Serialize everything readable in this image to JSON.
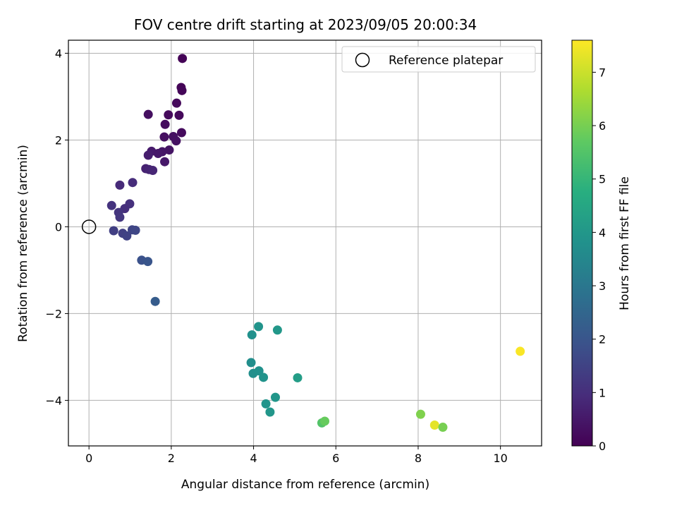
{
  "chart_data": {
    "type": "scatter",
    "title": "FOV centre drift starting at 2023/09/05 20:00:34",
    "xlabel": "Angular distance from reference (arcmin)",
    "ylabel": "Rotation from reference (arcmin)",
    "xlim": [
      -0.5,
      11
    ],
    "ylim": [
      -5.05,
      4.3
    ],
    "xticks": [
      0,
      2,
      4,
      6,
      8,
      10
    ],
    "yticks": [
      -4,
      -2,
      0,
      2,
      4
    ],
    "grid": true,
    "legend": {
      "location": "top-right",
      "entries": [
        {
          "label": "Reference platepar",
          "marker": "open-circle"
        }
      ]
    },
    "reference_point": {
      "x": 0,
      "y": 0
    },
    "colorbar": {
      "label": "Hours from first FF file",
      "colormap": "viridis",
      "range": [
        0,
        7.6
      ],
      "ticks": [
        0,
        1,
        2,
        3,
        4,
        5,
        6,
        7
      ]
    },
    "points": [
      {
        "x": 2.27,
        "y": 3.88,
        "c": 0.05
      },
      {
        "x": 2.24,
        "y": 3.21,
        "c": 0.08
      },
      {
        "x": 2.26,
        "y": 3.14,
        "c": 0.1
      },
      {
        "x": 2.13,
        "y": 2.85,
        "c": 0.15
      },
      {
        "x": 1.44,
        "y": 2.59,
        "c": 0.3
      },
      {
        "x": 1.93,
        "y": 2.58,
        "c": 0.2
      },
      {
        "x": 2.19,
        "y": 2.57,
        "c": 0.18
      },
      {
        "x": 1.85,
        "y": 2.36,
        "c": 0.25
      },
      {
        "x": 2.25,
        "y": 2.17,
        "c": 0.22
      },
      {
        "x": 1.83,
        "y": 2.07,
        "c": 0.3
      },
      {
        "x": 2.05,
        "y": 2.08,
        "c": 0.32
      },
      {
        "x": 2.12,
        "y": 1.98,
        "c": 0.35
      },
      {
        "x": 1.95,
        "y": 1.77,
        "c": 0.4
      },
      {
        "x": 1.78,
        "y": 1.73,
        "c": 0.45
      },
      {
        "x": 1.52,
        "y": 1.74,
        "c": 0.55
      },
      {
        "x": 1.68,
        "y": 1.69,
        "c": 0.5
      },
      {
        "x": 1.44,
        "y": 1.65,
        "c": 0.6
      },
      {
        "x": 1.84,
        "y": 1.5,
        "c": 0.5
      },
      {
        "x": 1.38,
        "y": 1.34,
        "c": 0.7
      },
      {
        "x": 1.46,
        "y": 1.32,
        "c": 0.75
      },
      {
        "x": 1.55,
        "y": 1.3,
        "c": 0.8
      },
      {
        "x": 1.06,
        "y": 1.02,
        "c": 0.95
      },
      {
        "x": 0.75,
        "y": 0.96,
        "c": 0.9
      },
      {
        "x": 0.55,
        "y": 0.49,
        "c": 1.1
      },
      {
        "x": 0.99,
        "y": 0.53,
        "c": 1.05
      },
      {
        "x": 0.87,
        "y": 0.42,
        "c": 1.0
      },
      {
        "x": 0.72,
        "y": 0.33,
        "c": 1.15
      },
      {
        "x": 0.75,
        "y": 0.22,
        "c": 1.2
      },
      {
        "x": 0.6,
        "y": -0.09,
        "c": 1.4
      },
      {
        "x": 0.82,
        "y": -0.15,
        "c": 1.45
      },
      {
        "x": 0.92,
        "y": -0.21,
        "c": 1.5
      },
      {
        "x": 1.05,
        "y": -0.07,
        "c": 1.55
      },
      {
        "x": 1.13,
        "y": -0.08,
        "c": 1.6
      },
      {
        "x": 1.28,
        "y": -0.77,
        "c": 1.9
      },
      {
        "x": 1.43,
        "y": -0.8,
        "c": 2.0
      },
      {
        "x": 1.61,
        "y": -1.72,
        "c": 2.2
      },
      {
        "x": 4.12,
        "y": -2.3,
        "c": 3.9
      },
      {
        "x": 4.58,
        "y": -2.38,
        "c": 4.0
      },
      {
        "x": 3.96,
        "y": -2.49,
        "c": 3.8
      },
      {
        "x": 3.94,
        "y": -3.13,
        "c": 3.7
      },
      {
        "x": 3.99,
        "y": -3.38,
        "c": 3.75
      },
      {
        "x": 4.13,
        "y": -3.32,
        "c": 3.8
      },
      {
        "x": 4.24,
        "y": -3.47,
        "c": 3.85
      },
      {
        "x": 5.07,
        "y": -3.48,
        "c": 4.2
      },
      {
        "x": 4.53,
        "y": -3.93,
        "c": 3.95
      },
      {
        "x": 4.3,
        "y": -4.08,
        "c": 3.9
      },
      {
        "x": 4.4,
        "y": -4.27,
        "c": 3.95
      },
      {
        "x": 5.66,
        "y": -4.52,
        "c": 5.5
      },
      {
        "x": 5.73,
        "y": -4.48,
        "c": 5.8
      },
      {
        "x": 8.06,
        "y": -4.32,
        "c": 6.1
      },
      {
        "x": 8.4,
        "y": -4.57,
        "c": 7.3
      },
      {
        "x": 8.6,
        "y": -4.62,
        "c": 6.0
      },
      {
        "x": 10.48,
        "y": -2.87,
        "c": 7.55
      }
    ]
  }
}
